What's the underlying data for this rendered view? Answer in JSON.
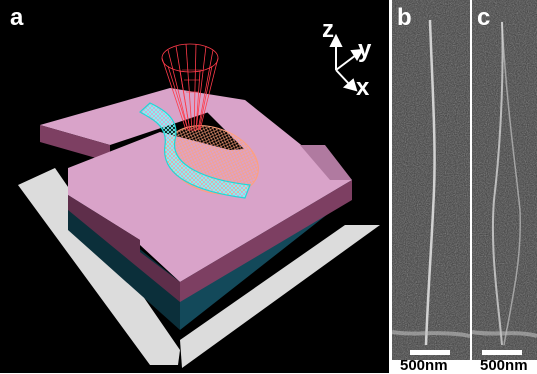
{
  "panels": {
    "a": {
      "label": "a"
    },
    "b": {
      "label": "b",
      "scale": "500nm"
    },
    "c": {
      "label": "c",
      "scale": "500nm"
    }
  },
  "axes": {
    "z": "z",
    "y": "y",
    "x": "x"
  },
  "colors": {
    "background": "#000000",
    "slab_top": "#d9a3c9",
    "slab_side": "#7d3f62",
    "substrate_side": "#13495a",
    "substrate_plate": "#dcdcdc",
    "beam": "#ff3b4a",
    "nanowire": "#22d6d6",
    "mesh_loop": "#ffa07a"
  }
}
